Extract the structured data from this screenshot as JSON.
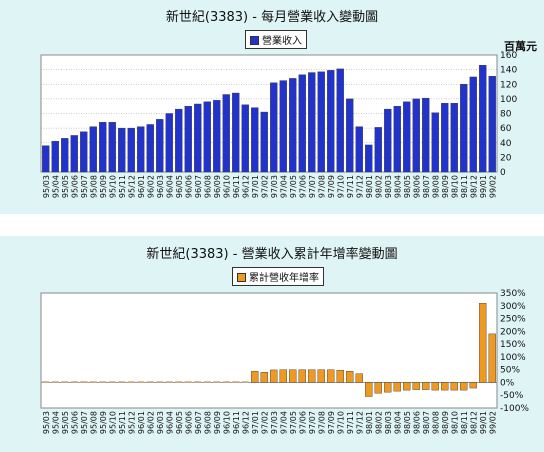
{
  "chart_data": [
    {
      "type": "bar",
      "title": "新世紀(3383) - 每月營業收入變動圖",
      "legend": "營業收入",
      "ylabel": "百萬元",
      "ylim": [
        0,
        160
      ],
      "yticks": [
        0,
        20,
        40,
        60,
        80,
        100,
        120,
        140,
        160
      ],
      "grid": true,
      "color": "#2233cc",
      "categories": [
        "95/03",
        "95/04",
        "95/05",
        "95/06",
        "95/07",
        "95/08",
        "95/09",
        "95/10",
        "95/11",
        "95/12",
        "96/01",
        "96/02",
        "96/03",
        "96/04",
        "96/05",
        "96/06",
        "96/07",
        "96/08",
        "96/09",
        "96/10",
        "96/11",
        "96/12",
        "97/01",
        "97/02",
        "97/03",
        "97/04",
        "97/05",
        "97/06",
        "97/07",
        "97/08",
        "97/09",
        "97/10",
        "97/11",
        "97/12",
        "98/01",
        "98/02",
        "98/03",
        "98/04",
        "98/05",
        "98/06",
        "98/07",
        "98/08",
        "98/09",
        "98/10",
        "98/11",
        "98/12",
        "99/01",
        "99/02"
      ],
      "values": [
        36,
        42,
        46,
        50,
        55,
        62,
        68,
        68,
        60,
        60,
        62,
        65,
        72,
        80,
        86,
        90,
        93,
        96,
        98,
        106,
        108,
        92,
        88,
        82,
        122,
        125,
        128,
        133,
        136,
        137,
        139,
        141,
        100,
        62,
        37,
        61,
        86,
        90,
        96,
        100,
        101,
        81,
        94,
        94,
        120,
        130,
        146,
        131
      ]
    },
    {
      "type": "bar",
      "title": "新世紀(3383) -  營業收入累計年增率變動圖",
      "legend": "累計營收年增率",
      "ylim": [
        -100,
        350
      ],
      "yticks": [
        "350%",
        "300%",
        "250%",
        "200%",
        "150%",
        "100%",
        "50%",
        "0%",
        "-50%",
        "-100%"
      ],
      "grid": false,
      "color": "#ee9922",
      "categories": [
        "95/03",
        "95/04",
        "95/05",
        "95/06",
        "95/07",
        "95/08",
        "95/09",
        "95/10",
        "95/11",
        "95/12",
        "96/01",
        "96/02",
        "96/03",
        "96/04",
        "96/05",
        "96/06",
        "96/07",
        "96/08",
        "96/09",
        "96/10",
        "96/11",
        "96/12",
        "97/01",
        "97/02",
        "97/03",
        "97/04",
        "97/05",
        "97/06",
        "97/07",
        "97/08",
        "97/09",
        "97/10",
        "97/11",
        "97/12",
        "98/01",
        "98/02",
        "98/03",
        "98/04",
        "98/05",
        "98/06",
        "98/07",
        "98/08",
        "98/09",
        "98/10",
        "98/11",
        "98/12",
        "99/01",
        "99/02"
      ],
      "values": [
        0,
        0,
        0,
        0,
        0,
        0,
        0,
        0,
        0,
        0,
        0,
        0,
        0,
        0,
        0,
        0,
        0,
        0,
        0,
        0,
        0,
        0,
        44,
        40,
        49,
        50,
        50,
        50,
        50,
        50,
        50,
        48,
        44,
        34,
        -55,
        -42,
        -38,
        -34,
        -30,
        -28,
        -28,
        -30,
        -30,
        -30,
        -30,
        -22,
        310,
        190
      ]
    }
  ]
}
